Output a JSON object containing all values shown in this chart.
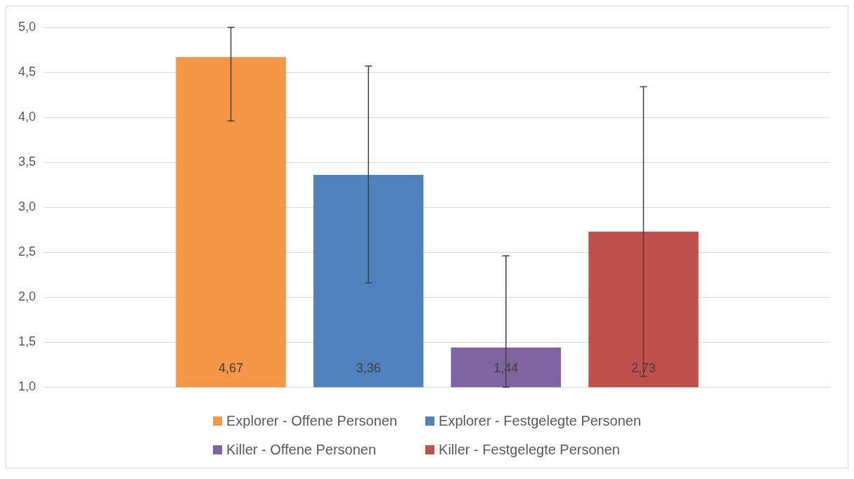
{
  "chart_data": {
    "type": "bar",
    "categories": [
      null
    ],
    "series": [
      {
        "name": "Explorer - Offene Personen",
        "color": "#f79646",
        "values": [
          4.67
        ],
        "value_labels": [
          "4,67"
        ],
        "errors": [
          [
            3.96,
            5.0
          ]
        ]
      },
      {
        "name": "Explorer - Festgelegte Personen",
        "color": "#4f81bd",
        "values": [
          3.36
        ],
        "value_labels": [
          "3,36"
        ],
        "errors": [
          [
            2.16,
            4.57
          ]
        ]
      },
      {
        "name": "Killer - Offene Personen",
        "color": "#8064a2",
        "values": [
          1.44
        ],
        "value_labels": [
          "1,44"
        ],
        "errors": [
          [
            1.0,
            2.46
          ]
        ]
      },
      {
        "name": "Killer - Festgelegte Personen",
        "color": "#c0504d",
        "values": [
          2.73
        ],
        "value_labels": [
          "2,73"
        ],
        "errors": [
          [
            1.12,
            4.34
          ]
        ]
      }
    ],
    "ylim": [
      1.0,
      5.0
    ],
    "yticks": [
      {
        "value": 1.0,
        "label": "1,0"
      },
      {
        "value": 1.5,
        "label": "1,5"
      },
      {
        "value": 2.0,
        "label": "2,0"
      },
      {
        "value": 2.5,
        "label": "2,5"
      },
      {
        "value": 3.0,
        "label": "3,0"
      },
      {
        "value": 3.5,
        "label": "3,5"
      },
      {
        "value": 4.0,
        "label": "4,0"
      },
      {
        "value": 4.5,
        "label": "4,5"
      },
      {
        "value": 5.0,
        "label": "5,0"
      }
    ],
    "grid": "y",
    "legend": "bottom"
  }
}
